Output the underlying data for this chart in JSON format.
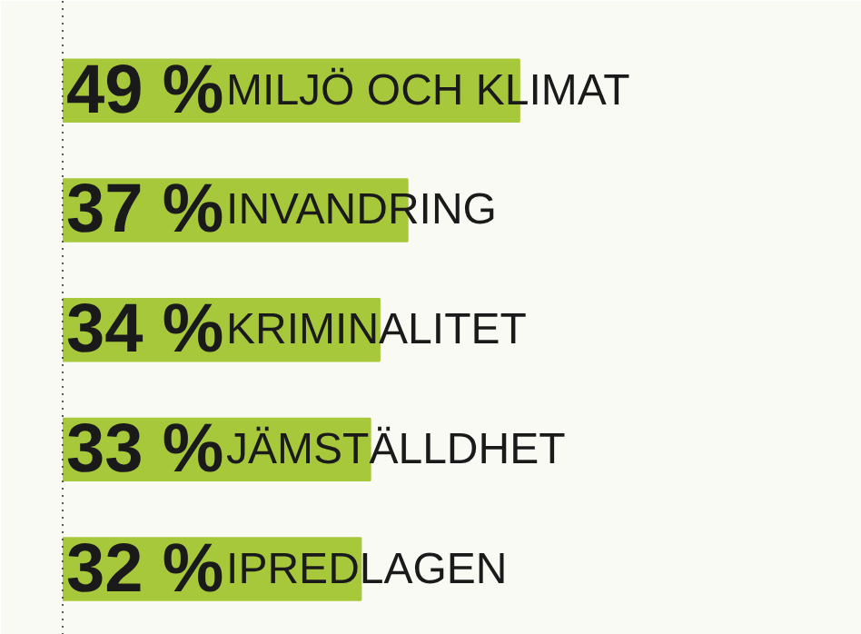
{
  "chart_data": {
    "type": "bar",
    "orientation": "horizontal",
    "categories": [
      "MILJÖ OCH KLIMAT",
      "INVANDRING",
      "KRIMINALITET",
      "JÄMSTÄLLDHET",
      "IPREDLAGEN"
    ],
    "values": [
      49,
      37,
      34,
      33,
      32
    ],
    "value_labels": [
      "49 %",
      "37 %",
      "34 %",
      "33 %",
      "32 %"
    ],
    "color": "#a8c83c",
    "tick_labels": false,
    "grid": false
  }
}
